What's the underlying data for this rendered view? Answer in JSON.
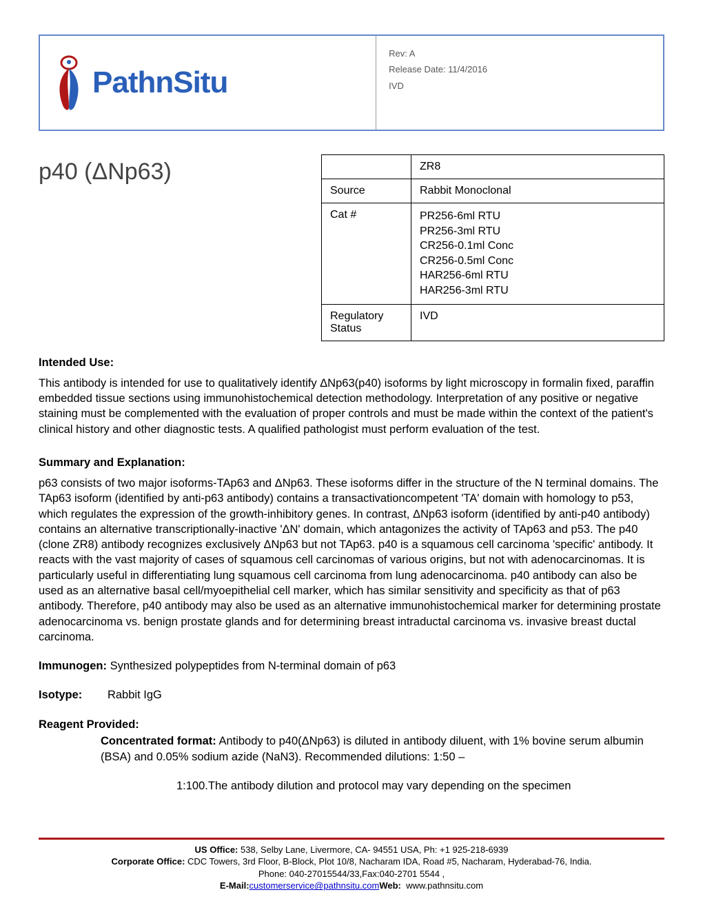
{
  "header": {
    "logo_text": "PathnSitu",
    "rev_label": "Rev:",
    "rev_value": "A",
    "release_label": "Release Date:",
    "release_value": "11/4/2016",
    "ivd": "IVD"
  },
  "product": {
    "title": "p40 (ΔNp63)"
  },
  "info_table": {
    "clone_value": "ZR8",
    "source_label": "Source",
    "source_value": "Rabbit Monoclonal",
    "cat_label": "Cat #",
    "cat_values": [
      "PR256-6ml RTU",
      "PR256-3ml RTU",
      "CR256-0.1ml Conc",
      "CR256-0.5ml Conc",
      "HAR256-6ml RTU",
      "HAR256-3ml RTU"
    ],
    "reg_label": "Regulatory Status",
    "reg_value": "IVD"
  },
  "sections": {
    "intended_use_heading": "Intended Use:",
    "intended_use_text": "This antibody is intended for use to qualitatively identify ΔNp63(p40) isoforms by light microscopy in formalin fixed, paraffin embedded tissue sections using immunohistochemical detection methodology. Interpretation of any positive or negative staining must be complemented with the evaluation of proper controls and must be made within the context of the patient's clinical history and other diagnostic tests. A qualified pathologist must perform evaluation of the test.",
    "summary_heading": "Summary and Explanation:",
    "summary_text": "p63 consists of two major isoforms-TAp63 and ΔNp63. These isoforms differ in the structure of the N terminal domains. The TAp63 isoform (identified by anti-p63 antibody) contains a transactivationcompetent 'TA' domain with homology to p53, which regulates the expression of the growth-inhibitory genes. In contrast, ΔNp63 isoform (identified by anti-p40 antibody) contains an alternative transcriptionally-inactive 'ΔN' domain, which antagonizes the activity of TAp63 and p53. The p40 (clone ZR8) antibody recognizes exclusively ΔNp63 but not TAp63. p40 is a squamous cell carcinoma 'specific' antibody. It reacts with the vast majority of cases of squamous cell carcinomas of various origins, but not with adenocarcinomas. It is particularly useful in differentiating lung squamous cell carcinoma from lung adenocarcinoma. p40 antibody can also be used as an alternative basal cell/myoepithelial cell marker, which has similar sensitivity and specificity as that of p63 antibody. Therefore, p40 antibody may also be used as an alternative immunohistochemical marker for determining prostate adenocarcinoma vs. benign prostate glands and for determining breast intraductal carcinoma vs. invasive breast ductal carcinoma.",
    "immunogen_label": "Immunogen:",
    "immunogen_value": "Synthesized polypeptides from N-terminal domain of p63",
    "isotype_label": "Isotype:",
    "isotype_value": "Rabbit IgG",
    "reagent_heading": "Reagent Provided:",
    "reagent_sub_label": "Concentrated format:",
    "reagent_sub_text": "Antibody to p40(ΔNp63) is diluted in antibody diluent, with 1% bovine serum albumin (BSA) and 0.05% sodium azide (NaN3). Recommended dilutions: 1:50 –",
    "reagent_line2": "1:100.The antibody dilution and protocol may vary depending on the specimen"
  },
  "footer": {
    "us_label": "US Office:",
    "us_value": "538, Selby Lane, Livermore, CA- 94551 USA, Ph: +1 925-218-6939",
    "corp_label": "Corporate Office:",
    "corp_value": "CDC Towers, 3rd Floor, B-Block, Plot 10/8, Nacharam IDA, Road #5, Nacharam, Hyderabad-76, India.",
    "phone": "Phone: 040-27015544/33,Fax:040-2701 5544 ,",
    "email_label": "E-Mail:",
    "email_value": "customerservice@pathnsitu.com",
    "web_label": "Web:",
    "web_value": "www.pathnsitu.com"
  },
  "colors": {
    "header_border": "#6688cc",
    "logo_color": "#2a5fb8",
    "footer_rule": "#b01818",
    "text": "#000000",
    "meta_text": "#555555"
  }
}
